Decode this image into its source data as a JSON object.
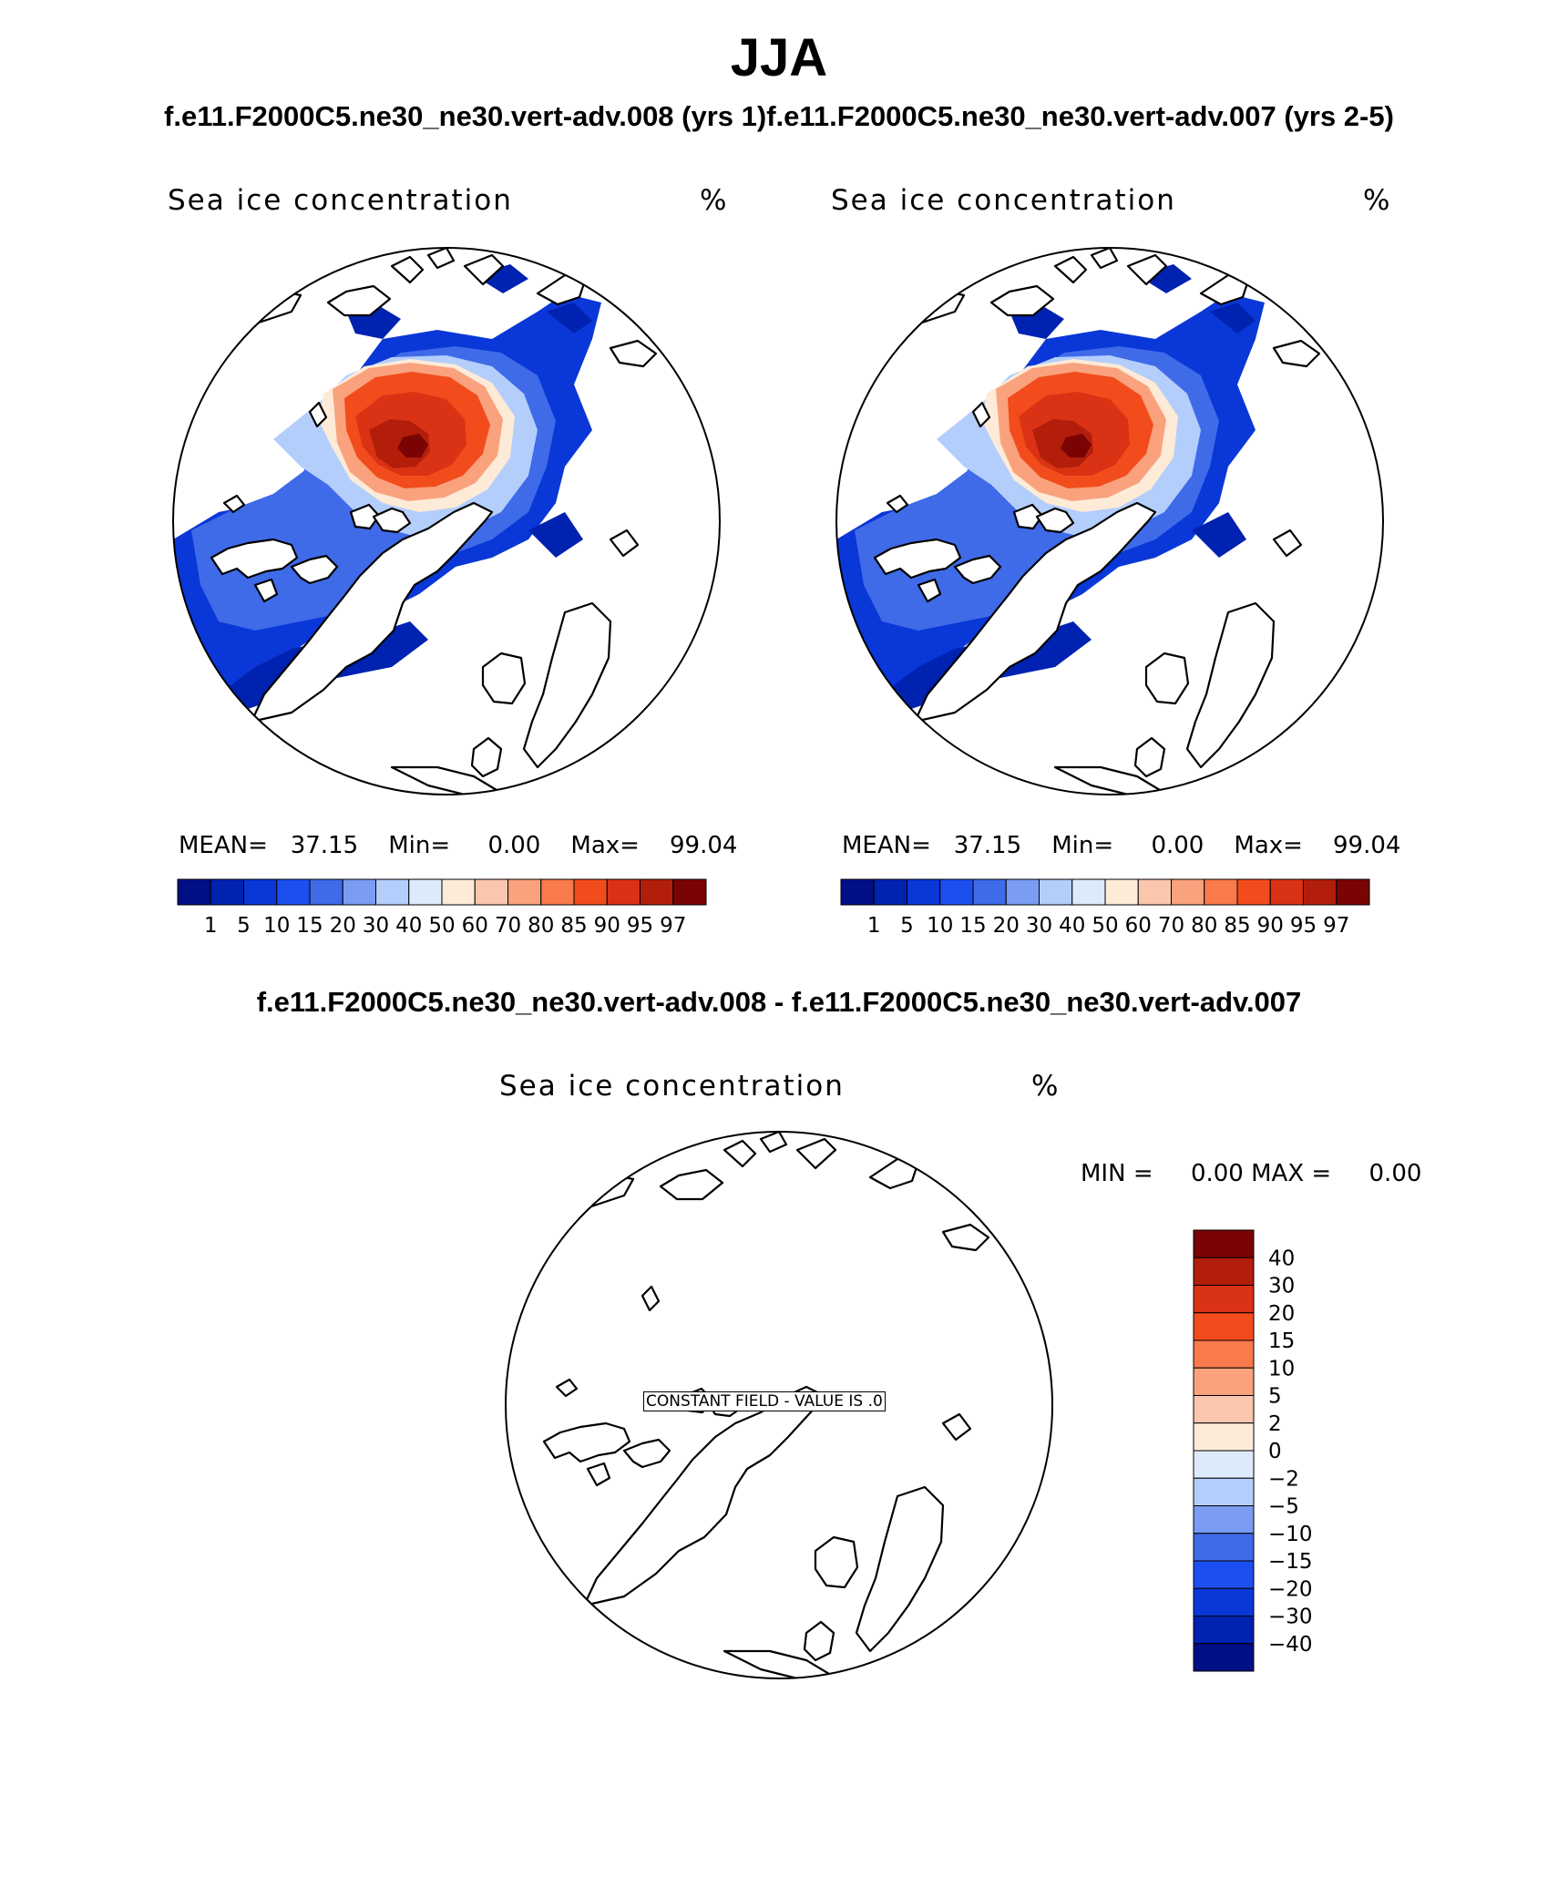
{
  "season": "JJA",
  "case_title": "f.e11.F2000C5.ne30_ne30.vert-adv.008 (yrs 1)f.e11.F2000C5.ne30_ne30.vert-adv.007 (yrs 2-5)",
  "diff_title": "f.e11.F2000C5.ne30_ne30.vert-adv.008 - f.e11.F2000C5.ne30_ne30.vert-adv.007",
  "panels": [
    {
      "variable": "Sea ice concentration",
      "units": "%",
      "mean_label": "MEAN=",
      "mean": "37.15",
      "min_label": "Min=",
      "min": "0.00",
      "max_label": "Max=",
      "max": "99.04"
    },
    {
      "variable": "Sea ice concentration",
      "units": "%",
      "mean_label": "MEAN=",
      "mean": "37.15",
      "min_label": "Min=",
      "min": "0.00",
      "max_label": "Max=",
      "max": "99.04"
    }
  ],
  "diff_panel": {
    "variable": "Sea ice concentration",
    "units": "%",
    "min_label": "MIN =",
    "min": "0.00",
    "max_label": "MAX =",
    "max": "0.00",
    "constant_field_label": "CONSTANT FIELD - VALUE IS .0"
  },
  "colors": {
    "abs_palette": [
      "#000f86",
      "#0022b0",
      "#0a37d7",
      "#1d4ff0",
      "#3f6ae8",
      "#7a9cf3",
      "#b4cefc",
      "#dceafb",
      "#fdebd8",
      "#fac6ae",
      "#f9a27d",
      "#f97a4c",
      "#f24c1c",
      "#da3214",
      "#b21e0a",
      "#7a0303"
    ],
    "diff_palette": [
      "#000f86",
      "#0022b0",
      "#0a37d7",
      "#1d4ff0",
      "#3f6ae8",
      "#7a9cf3",
      "#b4cefc",
      "#dceafb",
      "#fdebd8",
      "#fac6ae",
      "#f9a27d",
      "#f97a4c",
      "#f24c1c",
      "#da3214",
      "#b21e0a",
      "#7a0303"
    ]
  },
  "chart_data": [
    {
      "type": "heatmap",
      "projection": "north-polar-stereographic",
      "title": "Sea ice concentration",
      "units": "%",
      "case": "f.e11.F2000C5.ne30_ne30.vert-adv.008 (yrs 1)",
      "levels": [
        "1",
        "5",
        "10",
        "15",
        "20",
        "30",
        "40",
        "50",
        "60",
        "70",
        "80",
        "85",
        "90",
        "95",
        "97"
      ],
      "stats": {
        "mean": 37.15,
        "min": 0.0,
        "max": 99.04
      }
    },
    {
      "type": "heatmap",
      "projection": "north-polar-stereographic",
      "title": "Sea ice concentration",
      "units": "%",
      "case": "f.e11.F2000C5.ne30_ne30.vert-adv.007 (yrs 2-5)",
      "levels": [
        "1",
        "5",
        "10",
        "15",
        "20",
        "30",
        "40",
        "50",
        "60",
        "70",
        "80",
        "85",
        "90",
        "95",
        "97"
      ],
      "stats": {
        "mean": 37.15,
        "min": 0.0,
        "max": 99.04
      }
    },
    {
      "type": "heatmap",
      "projection": "north-polar-stereographic",
      "title": "Sea ice concentration",
      "units": "%",
      "case": "f.e11.F2000C5.ne30_ne30.vert-adv.008 - f.e11.F2000C5.ne30_ne30.vert-adv.007",
      "levels": [
        "40",
        "30",
        "20",
        "15",
        "10",
        "5",
        "2",
        "0",
        "−2",
        "−5",
        "−10",
        "−15",
        "−20",
        "−30",
        "−40"
      ],
      "stats": {
        "min": 0.0,
        "max": 0.0
      },
      "note": "CONSTANT FIELD - VALUE IS .0"
    }
  ]
}
